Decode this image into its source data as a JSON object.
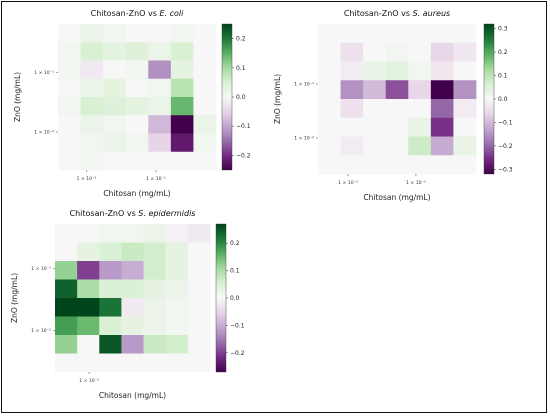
{
  "chart_data": [
    {
      "type": "heatmap",
      "title_prefix": "Chitosan-ZnO vs ",
      "title_species": "E. coli",
      "xlabel": "Chitosan (mg/mL)",
      "ylabel": "ZnO (mg/mL)",
      "x_scale": "log",
      "y_scale": "log",
      "x_ticklabels": [
        "1 × 10⁻²",
        "1 × 10⁻¹"
      ],
      "y_ticklabels": [
        "1 × 10⁻¹",
        "1 × 10⁻²"
      ],
      "colorbar": {
        "min": -0.25,
        "max": 0.25,
        "ticks": [
          0.2,
          0.1,
          0.0,
          -0.1,
          -0.2
        ],
        "colormap": "PRGn"
      },
      "z": [
        [
          0.0,
          0.02,
          0.01,
          0.0,
          0.0,
          0.01,
          0.0
        ],
        [
          0.01,
          0.05,
          0.03,
          0.04,
          0.02,
          0.05,
          0.0
        ],
        [
          0.01,
          -0.02,
          0.0,
          0.01,
          -0.12,
          0.03,
          0.0
        ],
        [
          0.0,
          0.02,
          0.03,
          0.0,
          0.01,
          0.08,
          0.0
        ],
        [
          0.01,
          0.05,
          0.04,
          0.03,
          0.02,
          0.14,
          0.0
        ],
        [
          0.0,
          0.02,
          0.01,
          0.0,
          -0.08,
          -0.25,
          0.02
        ],
        [
          0.0,
          0.01,
          0.02,
          0.01,
          -0.05,
          -0.22,
          0.01
        ],
        [
          0.0,
          0.01,
          0.0,
          0.0,
          0.0,
          0.0,
          0.0
        ]
      ]
    },
    {
      "type": "heatmap",
      "title_prefix": "Chitosan-ZnO vs ",
      "title_species": "S. aureus",
      "xlabel": "Chitosan (mg/mL)",
      "ylabel": "ZnO (mg/mL)",
      "x_scale": "log",
      "y_scale": "log",
      "x_ticklabels": [
        "1 × 10⁻²",
        "1 × 10⁻¹"
      ],
      "y_ticklabels": [
        "1 × 10⁻¹",
        "1 × 10⁻²"
      ],
      "colorbar": {
        "min": -0.32,
        "max": 0.32,
        "ticks": [
          0.3,
          0.2,
          0.1,
          0.0,
          -0.1,
          -0.2,
          -0.3
        ],
        "colormap": "PRGn"
      },
      "z": [
        [
          0.0,
          0.0,
          0.0,
          0.0,
          0.0,
          0.0,
          0.0
        ],
        [
          0.0,
          -0.04,
          0.0,
          0.01,
          0.0,
          -0.06,
          -0.03
        ],
        [
          0.0,
          -0.02,
          0.03,
          0.04,
          0.01,
          -0.03,
          0.0
        ],
        [
          0.0,
          -0.15,
          -0.1,
          -0.22,
          -0.06,
          -0.32,
          -0.15
        ],
        [
          0.0,
          -0.04,
          0.0,
          0.0,
          0.0,
          -0.2,
          -0.02
        ],
        [
          0.0,
          0.0,
          0.0,
          0.0,
          0.03,
          -0.25,
          0.0
        ],
        [
          0.0,
          -0.02,
          0.0,
          0.0,
          0.08,
          -0.12,
          0.03
        ],
        [
          0.0,
          0.0,
          0.0,
          0.0,
          0.0,
          0.0,
          0.0
        ]
      ]
    },
    {
      "type": "heatmap",
      "title_prefix": "Chitosan-ZnO vs ",
      "title_species": "S. epidermidis",
      "xlabel": "Chitosan (mg/mL)",
      "ylabel": "ZnO (mg/mL)",
      "x_scale": "log",
      "y_scale": "log",
      "x_ticklabels": [
        "1 × 10⁻¹"
      ],
      "y_ticklabels": [
        "1 × 10⁻¹",
        "1 × 10⁻²"
      ],
      "colorbar": {
        "min": -0.27,
        "max": 0.27,
        "ticks": [
          0.2,
          0.1,
          0.0,
          -0.1,
          -0.2
        ],
        "colormap": "PRGn"
      },
      "z": [
        [
          0.0,
          0.0,
          0.01,
          0.01,
          0.02,
          -0.01,
          -0.02
        ],
        [
          0.0,
          0.03,
          0.05,
          0.07,
          0.06,
          0.03,
          0.0
        ],
        [
          0.12,
          -0.2,
          -0.12,
          -0.1,
          0.06,
          0.03,
          0.0
        ],
        [
          0.24,
          0.1,
          0.05,
          0.05,
          0.03,
          0.02,
          0.0
        ],
        [
          0.27,
          0.27,
          0.22,
          -0.02,
          0.02,
          0.01,
          0.0
        ],
        [
          0.18,
          0.15,
          0.05,
          0.03,
          0.02,
          0.01,
          0.0
        ],
        [
          0.12,
          0.0,
          0.25,
          -0.12,
          0.07,
          0.06,
          0.0
        ],
        [
          0.0,
          0.0,
          0.0,
          0.0,
          0.0,
          0.0,
          0.0
        ]
      ]
    }
  ]
}
